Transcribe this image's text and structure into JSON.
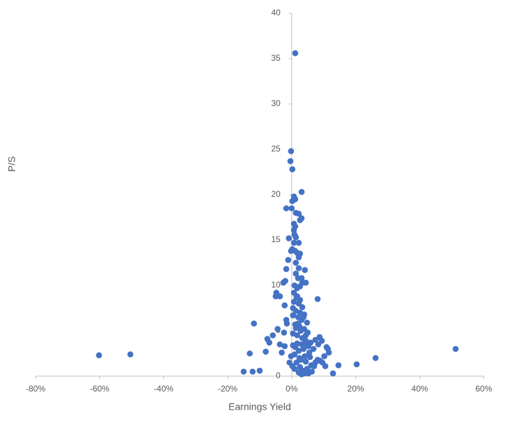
{
  "chart_data": {
    "type": "scatter",
    "x_label": "Earnings Yield",
    "y_label": "P/S",
    "color": "#4472c4",
    "grid": false,
    "xlim": [
      -80,
      60
    ],
    "xticks": [
      {
        "value": -80,
        "label": "-80%"
      },
      {
        "value": -60,
        "label": "-60%"
      },
      {
        "value": -40,
        "label": "-40%"
      },
      {
        "value": -20,
        "label": "-20%"
      },
      {
        "value": 0,
        "label": "0%"
      },
      {
        "value": 20,
        "label": "20%"
      },
      {
        "value": 40,
        "label": "40%"
      },
      {
        "value": 60,
        "label": "60%"
      }
    ],
    "ylim": [
      0,
      40
    ],
    "yticks": [
      0,
      5,
      10,
      15,
      20,
      25,
      30,
      35,
      40
    ],
    "x": [
      -60.2,
      -50.4,
      51.2,
      26.2,
      20.3,
      14.6,
      12.9,
      -11.8,
      -13.1,
      -8.1,
      -10.0,
      -12.2,
      -15.0,
      -4.4,
      -7.0,
      -5.9,
      -7.6,
      -2.4,
      -2.2,
      -1.7,
      -1.5,
      -3.7,
      -3.1,
      -4.8,
      -3.7,
      -5.0,
      -2.2,
      -2.6,
      -2.0,
      -1.7,
      -1.1,
      -0.9,
      -0.2,
      -1.7,
      -0.4,
      -0.2,
      0.2,
      1.1,
      3.1,
      0.7,
      0.2,
      1.1,
      0.0,
      1.3,
      2.2,
      2.6,
      3.1,
      0.7,
      1.1,
      0.7,
      0.9,
      1.3,
      2.2,
      0.7,
      0.2,
      1.1,
      1.7,
      2.6,
      2.2,
      1.3,
      4.1,
      2.2,
      1.3,
      2.0,
      3.1,
      4.4,
      3.3,
      0.9,
      1.7,
      2.6,
      0.7,
      1.7,
      8.1,
      0.7,
      2.2,
      3.3,
      1.3,
      2.6,
      3.9,
      0.4,
      2.0,
      3.1,
      4.8,
      1.1,
      2.4,
      3.9,
      5.0,
      0.4,
      1.7,
      3.3,
      4.4,
      5.9,
      7.4,
      8.7,
      8.3,
      9.4,
      10.9,
      11.6,
      10.2,
      8.9,
      7.4,
      6.1,
      4.8,
      3.5,
      2.2,
      0.9,
      1.5,
      2.8,
      4.1,
      5.5,
      6.8,
      5.2,
      3.7,
      2.2,
      0.9,
      0.4,
      1.7,
      3.1,
      4.1,
      5.7,
      7.0,
      3.9,
      3.1,
      5.2,
      10.5,
      9.6,
      11.3,
      1.1,
      2.4,
      -0.2,
      0.2,
      -0.7,
      2.6,
      4.4,
      6.3,
      8.1,
      1.3,
      2.8,
      4.4,
      0.4,
      1.5,
      2.6,
      3.7,
      2.0
    ],
    "y": [
      2.3,
      2.4,
      3.0,
      2.0,
      1.3,
      1.2,
      0.3,
      5.8,
      2.5,
      2.7,
      0.6,
      0.5,
      0.5,
      5.2,
      3.7,
      4.5,
      4.1,
      4.8,
      3.3,
      6.2,
      5.8,
      3.5,
      2.6,
      9.2,
      8.8,
      8.8,
      7.8,
      10.3,
      10.5,
      11.8,
      12.8,
      15.2,
      13.8,
      18.5,
      23.7,
      24.8,
      22.8,
      35.6,
      20.3,
      19.8,
      19.3,
      19.5,
      18.5,
      18.0,
      17.9,
      17.2,
      17.4,
      16.8,
      16.5,
      16.1,
      15.6,
      15.3,
      14.7,
      14.7,
      14.0,
      13.8,
      13.6,
      13.5,
      13.1,
      12.5,
      11.7,
      11.9,
      11.3,
      10.8,
      10.8,
      10.3,
      10.3,
      10.0,
      9.7,
      9.9,
      9.2,
      8.8,
      8.5,
      8.2,
      8.0,
      7.6,
      7.2,
      7.0,
      6.8,
      6.7,
      6.5,
      6.2,
      5.9,
      5.7,
      5.5,
      5.2,
      4.8,
      4.7,
      4.5,
      4.2,
      3.9,
      3.7,
      4.0,
      4.3,
      3.5,
      3.9,
      3.2,
      2.6,
      2.2,
      1.7,
      1.5,
      1.2,
      0.8,
      0.6,
      0.4,
      0.8,
      1.5,
      1.8,
      2.2,
      2.6,
      3.0,
      3.3,
      3.0,
      2.8,
      2.4,
      3.4,
      3.6,
      3.5,
      3.6,
      2.1,
      1.1,
      0.3,
      0.2,
      0.3,
      1.1,
      1.5,
      3.0,
      3.2,
      2.0,
      2.2,
      1.1,
      1.5,
      1.0,
      1.6,
      0.5,
      1.8,
      5.3,
      5.0,
      4.5,
      7.5,
      8.7,
      8.4,
      6.5,
      5.8
    ]
  }
}
